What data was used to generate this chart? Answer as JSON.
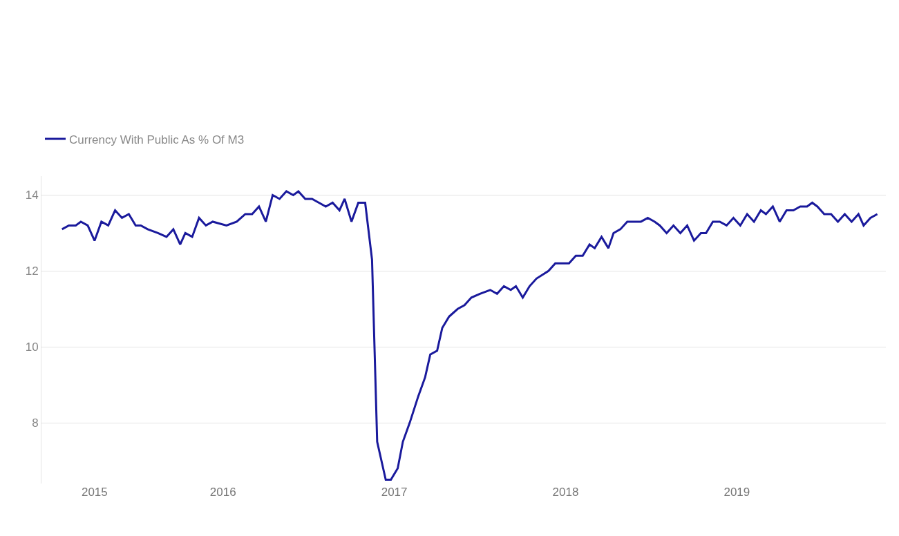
{
  "chart_data": {
    "type": "line",
    "x": [
      2015.06,
      2015.1,
      2015.14,
      2015.17,
      2015.21,
      2015.25,
      2015.29,
      2015.33,
      2015.37,
      2015.41,
      2015.45,
      2015.49,
      2015.52,
      2015.56,
      2015.62,
      2015.67,
      2015.71,
      2015.75,
      2015.78,
      2015.82,
      2015.86,
      2015.9,
      2015.94,
      2016.02,
      2016.08,
      2016.13,
      2016.17,
      2016.21,
      2016.25,
      2016.29,
      2016.33,
      2016.37,
      2016.41,
      2016.44,
      2016.48,
      2016.52,
      2016.56,
      2016.6,
      2016.64,
      2016.68,
      2016.71,
      2016.75,
      2016.79,
      2016.83,
      2016.87,
      2016.9,
      2016.95,
      2016.98,
      2017.02,
      2017.05,
      2017.09,
      2017.14,
      2017.18,
      2017.21,
      2017.25,
      2017.28,
      2017.32,
      2017.37,
      2017.41,
      2017.45,
      2017.5,
      2017.56,
      2017.6,
      2017.64,
      2017.68,
      2017.71,
      2017.75,
      2017.79,
      2017.83,
      2017.9,
      2017.94,
      2017.98,
      2018.02,
      2018.06,
      2018.1,
      2018.14,
      2018.17,
      2018.21,
      2018.25,
      2018.28,
      2018.32,
      2018.36,
      2018.4,
      2018.44,
      2018.48,
      2018.52,
      2018.55,
      2018.59,
      2018.63,
      2018.67,
      2018.71,
      2018.75,
      2018.79,
      2018.82,
      2018.86,
      2018.9,
      2018.94,
      2018.98,
      2019.02,
      2019.06,
      2019.1,
      2019.14,
      2019.17,
      2019.21,
      2019.25,
      2019.29,
      2019.33,
      2019.37,
      2019.41,
      2019.44,
      2019.47,
      2019.51,
      2019.55,
      2019.59,
      2019.63,
      2019.67,
      2019.71,
      2019.74,
      2019.78,
      2019.82
    ],
    "series": [
      {
        "name": "Currency With Public As % Of M3",
        "color": "#1a1a9c",
        "values": [
          13.1,
          13.2,
          13.2,
          13.3,
          13.2,
          12.8,
          13.3,
          13.2,
          13.6,
          13.4,
          13.5,
          13.2,
          13.2,
          13.1,
          13.0,
          12.9,
          13.1,
          12.7,
          13.0,
          12.9,
          13.4,
          13.2,
          13.3,
          13.2,
          13.3,
          13.5,
          13.5,
          13.7,
          13.3,
          14.0,
          13.9,
          14.1,
          14.0,
          14.1,
          13.9,
          13.9,
          13.8,
          13.7,
          13.8,
          13.6,
          13.9,
          13.3,
          13.8,
          13.8,
          12.3,
          7.5,
          6.5,
          6.5,
          6.8,
          7.5,
          8.0,
          8.7,
          9.2,
          9.8,
          9.9,
          10.5,
          10.8,
          11.0,
          11.1,
          11.3,
          11.4,
          11.5,
          11.4,
          11.6,
          11.5,
          11.6,
          11.3,
          11.6,
          11.8,
          12.0,
          12.2,
          12.2,
          12.2,
          12.4,
          12.4,
          12.7,
          12.6,
          12.9,
          12.6,
          13.0,
          13.1,
          13.3,
          13.3,
          13.3,
          13.4,
          13.3,
          13.2,
          13.0,
          13.2,
          13.0,
          13.2,
          12.8,
          13.0,
          13.0,
          13.3,
          13.3,
          13.2,
          13.4,
          13.2,
          13.5,
          13.3,
          13.6,
          13.5,
          13.7,
          13.3,
          13.6,
          13.6,
          13.7,
          13.7,
          13.8,
          13.7,
          13.5,
          13.5,
          13.3,
          13.5,
          13.3,
          13.5,
          13.2,
          13.4,
          13.5
        ]
      }
    ],
    "xlim": [
      2014.94,
      2019.87
    ],
    "xticks": [
      {
        "value": 2015.25,
        "label": "2015"
      },
      {
        "value": 2016,
        "label": "2016"
      },
      {
        "value": 2017,
        "label": "2017"
      },
      {
        "value": 2018,
        "label": "2018"
      },
      {
        "value": 2019,
        "label": "2019"
      }
    ],
    "ylim": [
      6.4,
      14.5
    ],
    "yticks": [
      8,
      10,
      12,
      14
    ],
    "grid": "y",
    "legend": "top left",
    "marker": "none",
    "line_style": "solid"
  }
}
